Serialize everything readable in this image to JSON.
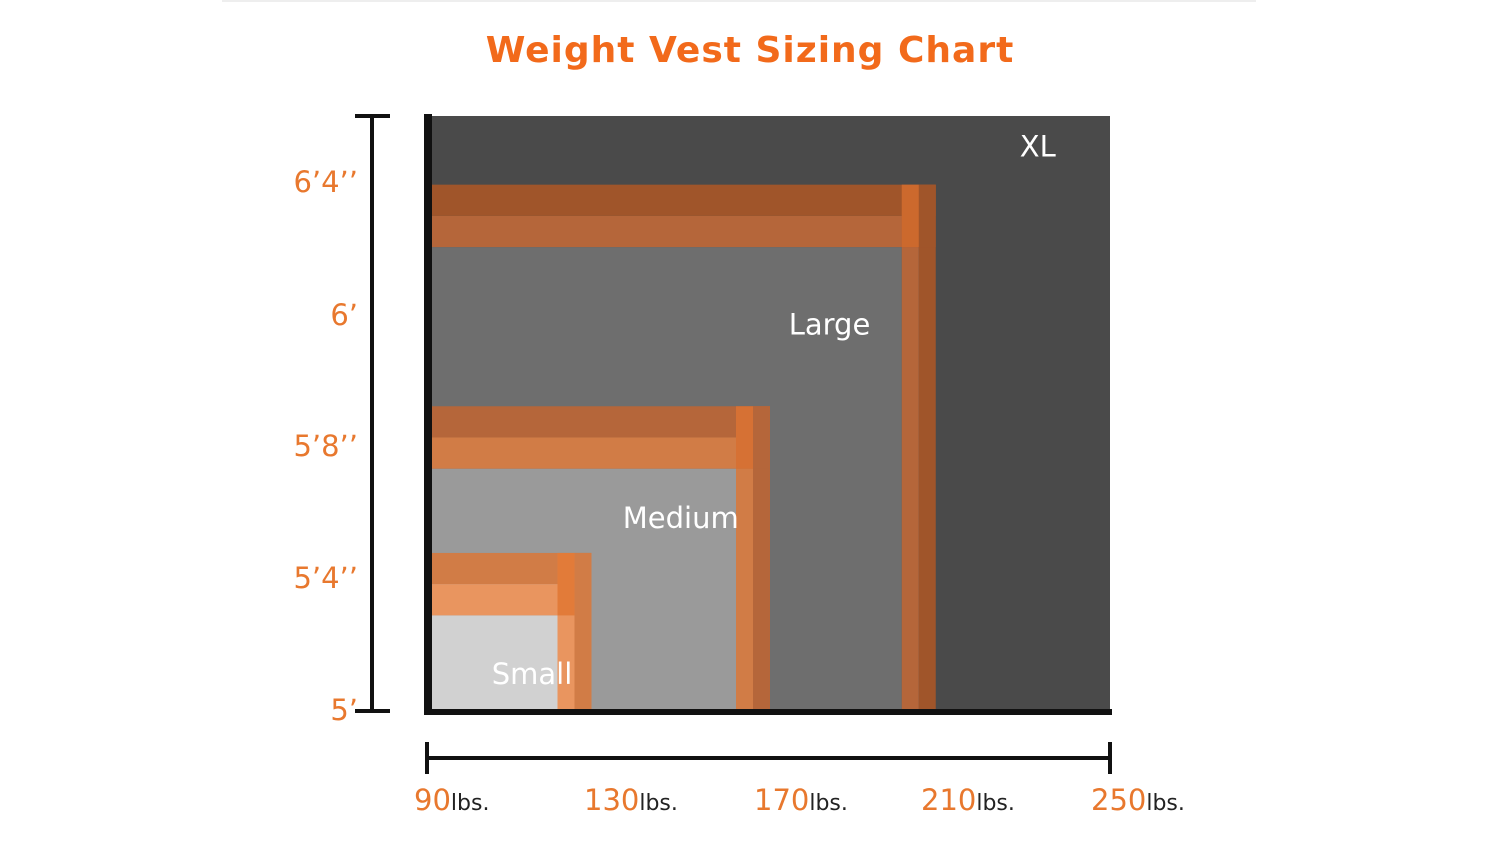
{
  "chart_data": {
    "type": "area",
    "title": "Weight Vest Sizing Chart",
    "x_unit": "lbs.",
    "x_ticks": [
      90,
      130,
      170,
      210,
      250
    ],
    "y_ticks": [
      "5’",
      "5’4’’",
      "5’8’’",
      "6’",
      "6’4’’"
    ],
    "xlim": [
      90,
      250
    ],
    "ylim_inches": [
      60,
      79
    ],
    "sizes": [
      {
        "label": "Small",
        "max_weight": 120,
        "max_height_in": 63,
        "overlap_weight": [
          120,
          128
        ],
        "overlap_height_in": [
          63,
          65
        ],
        "fill": "#d1d1d1"
      },
      {
        "label": "Medium",
        "max_weight": 162,
        "max_height_in": 67.7,
        "overlap_weight": [
          162,
          170
        ],
        "overlap_height_in": [
          67.7,
          69.7
        ],
        "fill": "#9a9a9a"
      },
      {
        "label": "Large",
        "max_weight": 201,
        "max_height_in": 74.8,
        "overlap_weight": [
          201,
          209
        ],
        "overlap_height_in": [
          74.8,
          76.8
        ],
        "fill": "#6e6e6e"
      },
      {
        "label": "XL",
        "max_weight": 250,
        "max_height_in": 79,
        "fill": "#4a4a4a"
      }
    ],
    "colors": {
      "title": "#f26a1b",
      "tick": "#e8782e",
      "axis": "#111111",
      "overlap_light": "#e9955f",
      "overlap_mid": "#d17c46",
      "overlap_dark": "#b5663a",
      "overlap_darker": "#a0552a",
      "overlap_corner": "#f07a30"
    }
  }
}
